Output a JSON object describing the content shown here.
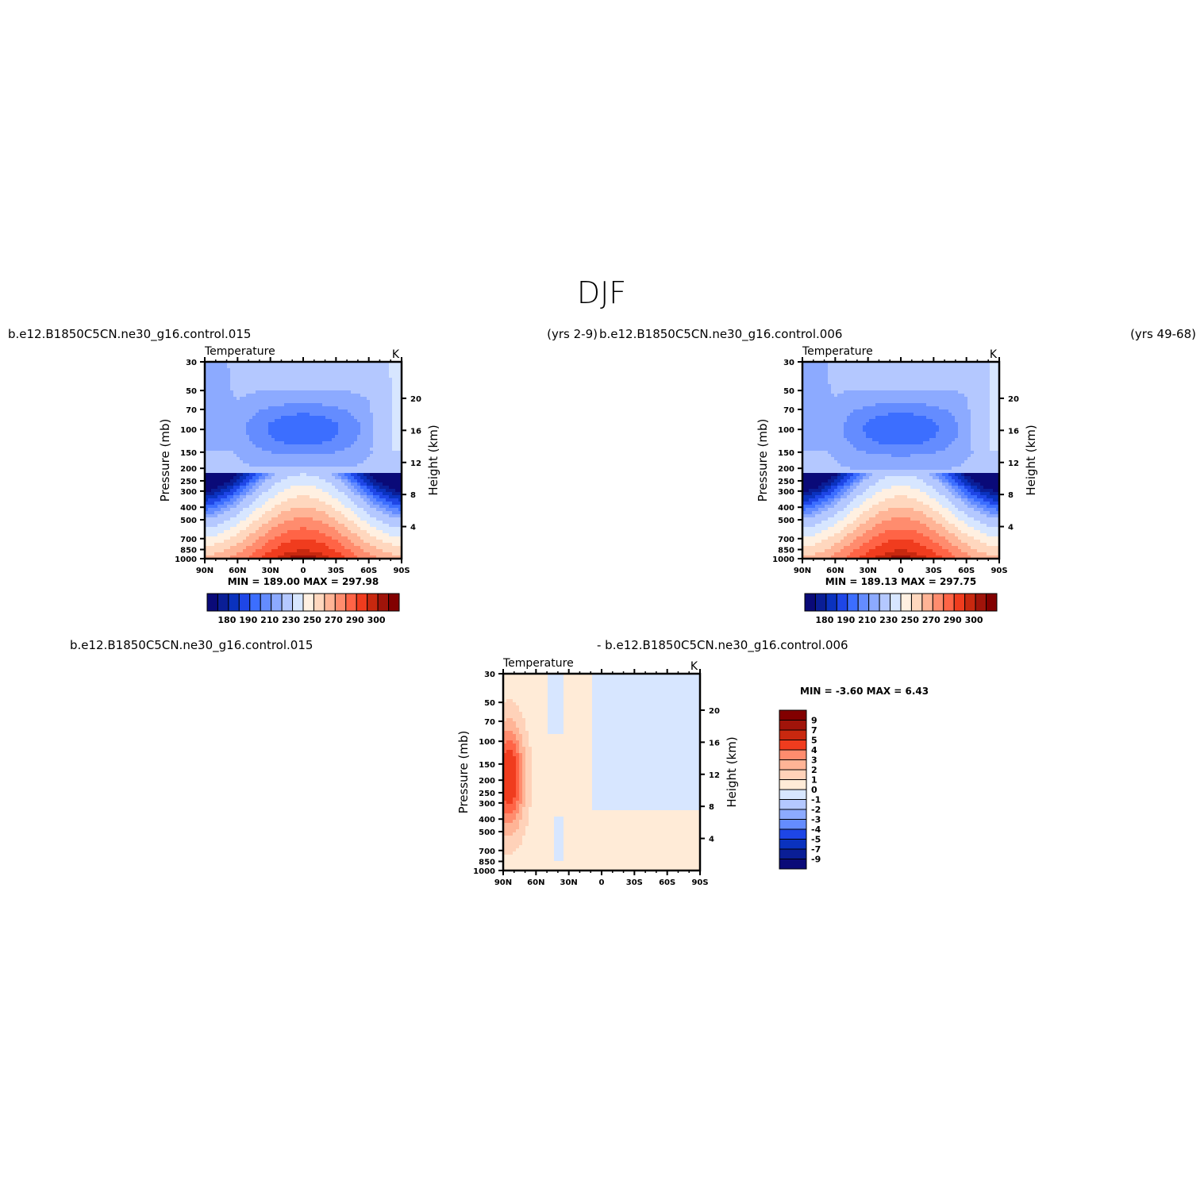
{
  "page_title": "DJF",
  "colors": {
    "temp_scale": [
      "#0a0a78",
      "#0a1e96",
      "#0a32be",
      "#1e46e6",
      "#3c6eff",
      "#648cff",
      "#8caaff",
      "#b4c8ff",
      "#d7e6ff",
      "#fff0e1",
      "#ffd7be",
      "#ffb496",
      "#ff8c6e",
      "#ff6446",
      "#f03c1e",
      "#c8280f",
      "#a0140a",
      "#820000"
    ],
    "diff_scale": [
      "#0a0a78",
      "#0a1e96",
      "#0a32be",
      "#1e46e6",
      "#3c6eff",
      "#648cff",
      "#8caaff",
      "#b4c8ff",
      "#d7e6ff",
      "#ffebd7",
      "#ffd2b9",
      "#ffb496",
      "#ff8c6e",
      "#ff6446",
      "#f03c1e",
      "#c8280f",
      "#a0140a",
      "#820000"
    ]
  },
  "panels": [
    {
      "left_title": "b.e12.B1850C5CN.ne30_g16.control.015",
      "right_title": "(yrs 2-9)",
      "center_title": "",
      "field": "Temperature",
      "units": "K",
      "minmax": "MIN =  189.00   MAX =  297.98"
    },
    {
      "left_title": "b.e12.B1850C5CN.ne30_g16.control.006",
      "right_title": "(yrs 49-68)",
      "center_title": "",
      "field": "Temperature",
      "units": "K",
      "minmax": "MIN =  189.13   MAX =  297.75"
    },
    {
      "left_title": "b.e12.B1850C5CN.ne30_g16.control.015",
      "right_title": "",
      "center_title": "- b.e12.B1850C5CN.ne30_g16.control.006",
      "field": "Temperature",
      "units": "K",
      "minmax": "MIN =   -3.60   MAX =    6.43"
    }
  ],
  "chart_data": [
    {
      "type": "heatmap",
      "title": "Temperature",
      "xlabel": "",
      "ylabel": "Pressure (mb)",
      "y2label": "Height (km)",
      "x_ticks": [
        "90N",
        "60N",
        "30N",
        "0",
        "30S",
        "60S",
        "90S"
      ],
      "y_ticks": [
        30,
        50,
        70,
        100,
        150,
        200,
        250,
        300,
        400,
        500,
        700,
        850,
        1000
      ],
      "y2_ticks": [
        20,
        16,
        12,
        8,
        4
      ],
      "xlim": [
        90,
        -90
      ],
      "ylim": [
        1000,
        30
      ],
      "yscale": "log",
      "units": "K",
      "min": 189.0,
      "max": 297.98,
      "colorbar_labels": [
        "180",
        "190",
        "210",
        "230",
        "250",
        "270",
        "290",
        "300"
      ]
    },
    {
      "type": "heatmap",
      "title": "Temperature",
      "xlabel": "",
      "ylabel": "Pressure (mb)",
      "y2label": "Height (km)",
      "x_ticks": [
        "90N",
        "60N",
        "30N",
        "0",
        "30S",
        "60S",
        "90S"
      ],
      "y_ticks": [
        30,
        50,
        70,
        100,
        150,
        200,
        250,
        300,
        400,
        500,
        700,
        850,
        1000
      ],
      "y2_ticks": [
        20,
        16,
        12,
        8,
        4
      ],
      "xlim": [
        90,
        -90
      ],
      "ylim": [
        1000,
        30
      ],
      "yscale": "log",
      "units": "K",
      "min": 189.13,
      "max": 297.75,
      "colorbar_labels": [
        "180",
        "190",
        "210",
        "230",
        "250",
        "270",
        "290",
        "300"
      ]
    },
    {
      "type": "heatmap",
      "title": "Temperature",
      "xlabel": "",
      "ylabel": "Pressure (mb)",
      "y2label": "Height (km)",
      "x_ticks": [
        "90N",
        "60N",
        "30N",
        "0",
        "30S",
        "60S",
        "90S"
      ],
      "y_ticks": [
        30,
        50,
        70,
        100,
        150,
        200,
        250,
        300,
        400,
        500,
        700,
        850,
        1000
      ],
      "y2_ticks": [
        20,
        16,
        12,
        8,
        4
      ],
      "xlim": [
        90,
        -90
      ],
      "ylim": [
        1000,
        30
      ],
      "yscale": "log",
      "units": "K",
      "min": -3.6,
      "max": 6.43,
      "colorbar_labels": [
        "9",
        "7",
        "5",
        "4",
        "3",
        "2",
        "1",
        "0",
        "-1",
        "-2",
        "-3",
        "-4",
        "-5",
        "-7",
        "-9"
      ]
    }
  ]
}
